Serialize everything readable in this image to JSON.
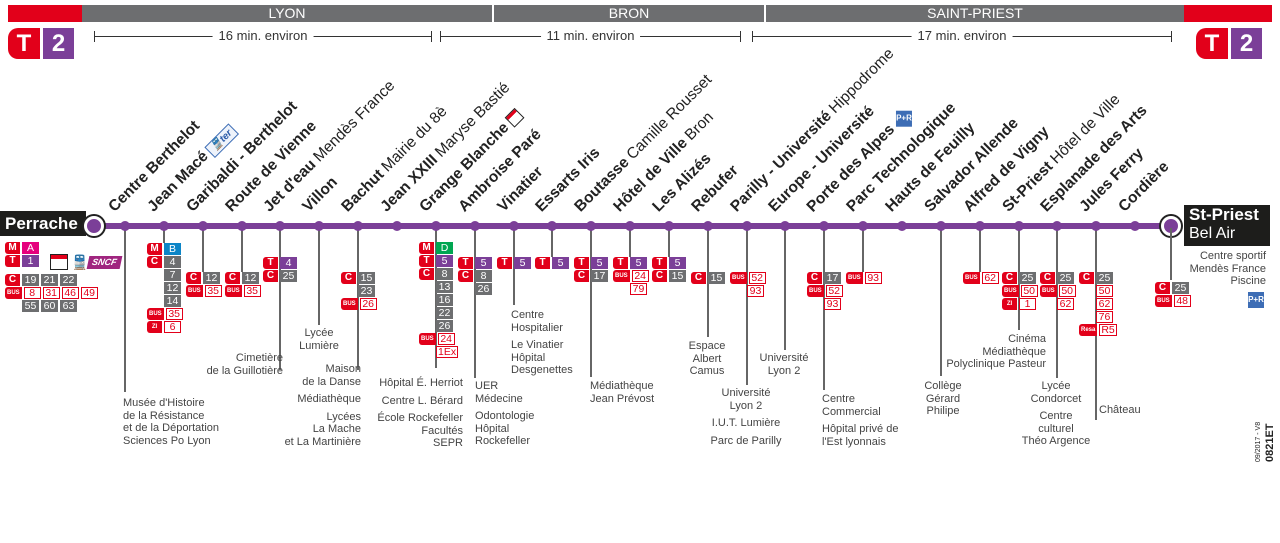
{
  "header": {
    "zones": [
      "LYON",
      "BRON",
      "SAINT-PRIEST"
    ],
    "durations": [
      "16 min. environ",
      "11 min. environ",
      "17 min. environ"
    ],
    "logo": {
      "mode": "T",
      "line": "2"
    }
  },
  "colors": {
    "line": "#7b3f98",
    "red": "#e2001a",
    "gray": "#6d6e70"
  },
  "origin": {
    "name": "Perrache",
    "rows": [
      {
        "mode": "M",
        "lines": [
          "A"
        ]
      },
      {
        "mode": "T",
        "lines": [
          "1"
        ]
      },
      {
        "mode": "C",
        "lines": [
          "19",
          "21",
          "22"
        ]
      },
      {
        "mode": "BUS",
        "lines": [
          "8",
          "31",
          "46",
          "49"
        ]
      },
      {
        "mode": null,
        "lines": [
          "55",
          "60",
          "63"
        ]
      }
    ],
    "icons": [
      "agence-tcl-icon",
      "train-icon",
      "sncf-logo"
    ],
    "sncf": "SNCF"
  },
  "terminus": {
    "name": "St-Priest",
    "sub": "Bel Air",
    "rows": [
      {
        "mode": "C",
        "lines": [
          "25"
        ]
      },
      {
        "mode": "BUS",
        "lines": [
          "48"
        ]
      }
    ],
    "poi": [
      "Centre sportif",
      "Mendès France",
      "Piscine"
    ],
    "pr": "P+R"
  },
  "stations": [
    {
      "name": "Centre Berthelot",
      "sub": "",
      "rows": [],
      "poi": [
        [
          "Musée d'Histoire",
          "de la Résistance",
          "et de la Déportation",
          "Sciences Po Lyon"
        ]
      ]
    },
    {
      "name": "Jean Macé",
      "sub": "",
      "icon": "ter",
      "rows": [
        {
          "mode": "M",
          "lines": [
            "B"
          ]
        },
        {
          "mode": "C",
          "lines": [
            "4"
          ]
        },
        {
          "mode": null,
          "lines": [
            "7"
          ]
        },
        {
          "mode": null,
          "lines": [
            "12"
          ]
        },
        {
          "mode": null,
          "lines": [
            "14"
          ]
        },
        {
          "mode": "BUS",
          "lines": [
            "35"
          ]
        },
        {
          "mode": "ZI",
          "lines": [
            "6"
          ]
        }
      ],
      "poi": []
    },
    {
      "name": "Garibaldi - Berthelot",
      "sub": "",
      "rows": [
        {
          "mode": "C",
          "lines": [
            "12"
          ]
        },
        {
          "mode": "BUS",
          "lines": [
            "35"
          ]
        }
      ],
      "poi": []
    },
    {
      "name": "Route de Vienne",
      "sub": "",
      "rows": [
        {
          "mode": "C",
          "lines": [
            "12"
          ]
        },
        {
          "mode": "BUS",
          "lines": [
            "35"
          ]
        }
      ],
      "poi": []
    },
    {
      "name": "Jet d'eau",
      "sub": "Mendès France",
      "rows": [
        {
          "mode": "T",
          "lines": [
            "4"
          ]
        },
        {
          "mode": "C",
          "lines": [
            "25"
          ]
        }
      ],
      "poi": [
        [
          "Cimetière",
          "de la Guillotière"
        ]
      ]
    },
    {
      "name": "Villon",
      "sub": "",
      "rows": [],
      "poi": [
        [
          "Lycée",
          "Lumière"
        ]
      ]
    },
    {
      "name": "Bachut",
      "sub": "Mairie du 8è",
      "rows": [
        {
          "mode": "C",
          "lines": [
            "15"
          ]
        },
        {
          "mode": null,
          "lines": [
            "23"
          ]
        },
        {
          "mode": "BUS",
          "lines": [
            "26"
          ]
        }
      ],
      "poi": [
        [
          "Maison",
          "de la Danse"
        ],
        [
          "Médiathèque"
        ],
        [
          "Lycées",
          "La Mache",
          "et La Martinière"
        ]
      ]
    },
    {
      "name": "Jean XXIII",
      "sub": "Maryse Bastié",
      "rows": [],
      "poi": []
    },
    {
      "name": "Grange Blanche",
      "sub": "",
      "icon": "agence",
      "rows": [
        {
          "mode": "M",
          "lines": [
            "D"
          ]
        },
        {
          "mode": "T",
          "lines": [
            "5"
          ]
        },
        {
          "mode": "C",
          "lines": [
            "8"
          ]
        },
        {
          "mode": null,
          "lines": [
            "13"
          ]
        },
        {
          "mode": null,
          "lines": [
            "16"
          ]
        },
        {
          "mode": null,
          "lines": [
            "22"
          ]
        },
        {
          "mode": null,
          "lines": [
            "26"
          ]
        },
        {
          "mode": "BUS",
          "lines": [
            "24"
          ]
        },
        {
          "mode": null,
          "kind": "BUS",
          "lines": [
            "1Ex"
          ]
        }
      ],
      "poi": [
        [
          "Hôpital É. Herriot"
        ],
        [
          "Centre L. Bérard"
        ],
        [
          "École Rockefeller",
          "Facultés",
          "SEPR"
        ]
      ]
    },
    {
      "name": "Ambroise Paré",
      "sub": "",
      "rows": [
        {
          "mode": "T",
          "lines": [
            "5"
          ]
        },
        {
          "mode": "C",
          "lines": [
            "8"
          ]
        },
        {
          "mode": null,
          "lines": [
            "26"
          ]
        }
      ],
      "poi": [
        [
          "UER",
          "Médecine"
        ],
        [
          "Odontologie",
          "Hôpital",
          "Rockefeller"
        ]
      ]
    },
    {
      "name": "Vinatier",
      "sub": "",
      "rows": [
        {
          "mode": "T",
          "lines": [
            "5"
          ]
        }
      ],
      "poi": [
        [
          "Centre",
          "Hospitalier"
        ],
        [
          "Le Vinatier",
          "Hôpital",
          "Desgenettes"
        ]
      ]
    },
    {
      "name": "Essarts Iris",
      "sub": "",
      "rows": [
        {
          "mode": "T",
          "lines": [
            "5"
          ]
        }
      ],
      "poi": []
    },
    {
      "name": "Boutasse",
      "sub": "Camille Rousset",
      "rows": [
        {
          "mode": "T",
          "lines": [
            "5"
          ]
        },
        {
          "mode": "C",
          "lines": [
            "17"
          ]
        }
      ],
      "poi": [
        [
          "Médiathèque",
          "Jean Prévost"
        ]
      ]
    },
    {
      "name": "Hôtel de Ville",
      "sub": "Bron",
      "rows": [
        {
          "mode": "T",
          "lines": [
            "5"
          ]
        },
        {
          "mode": "BUS",
          "lines": [
            "24"
          ]
        },
        {
          "mode": null,
          "kind": "BUS",
          "lines": [
            "79"
          ]
        }
      ],
      "poi": []
    },
    {
      "name": "Les Alizés",
      "sub": "",
      "rows": [
        {
          "mode": "T",
          "lines": [
            "5"
          ]
        },
        {
          "mode": "C",
          "lines": [
            "15"
          ]
        }
      ],
      "poi": []
    },
    {
      "name": "Rebufer",
      "sub": "",
      "rows": [
        {
          "mode": "C",
          "lines": [
            "15"
          ]
        }
      ],
      "poi": [
        [
          "Espace",
          "Albert",
          "Camus"
        ]
      ]
    },
    {
      "name": "Parilly - Université",
      "sub": "Hippodrome",
      "rows": [
        {
          "mode": "BUS",
          "lines": [
            "52"
          ]
        },
        {
          "mode": null,
          "kind": "BUS",
          "lines": [
            "93"
          ]
        }
      ],
      "poi": [
        [
          "Université",
          "Lyon 2"
        ],
        [
          "I.U.T. Lumière"
        ],
        [
          "Parc de Parilly"
        ]
      ]
    },
    {
      "name": "Europe - Université",
      "sub": "",
      "rows": [],
      "poi": [
        [
          "Université",
          "Lyon 2"
        ]
      ]
    },
    {
      "name": "Porte des Alpes",
      "sub": "",
      "icon": "pr",
      "rows": [
        {
          "mode": "C",
          "lines": [
            "17"
          ]
        },
        {
          "mode": "BUS",
          "lines": [
            "52"
          ]
        },
        {
          "mode": null,
          "kind": "BUS",
          "lines": [
            "93"
          ]
        }
      ],
      "poi": [
        [
          "Centre",
          "Commercial"
        ],
        [
          "Hôpital privé de",
          "l'Est lyonnais"
        ]
      ]
    },
    {
      "name": "Parc Technologique",
      "sub": "",
      "rows": [
        {
          "mode": "BUS",
          "lines": [
            "93"
          ]
        }
      ],
      "poi": []
    },
    {
      "name": "Hauts de Feuilly",
      "sub": "",
      "rows": [],
      "poi": []
    },
    {
      "name": "Salvador Allende",
      "sub": "",
      "rows": [],
      "poi": [
        [
          "Collège",
          "Gérard",
          "Philipe"
        ]
      ]
    },
    {
      "name": "Alfred de Vigny",
      "sub": "",
      "rows": [
        {
          "mode": "BUS",
          "lines": [
            "62"
          ]
        }
      ],
      "poi": []
    },
    {
      "name": "St-Priest",
      "sub": "Hôtel de Ville",
      "rows": [
        {
          "mode": "C",
          "lines": [
            "25"
          ]
        },
        {
          "mode": "BUS",
          "lines": [
            "50"
          ]
        },
        {
          "mode": "ZI",
          "lines": [
            "1"
          ]
        }
      ],
      "poi": [
        [
          "Cinéma",
          "Médiathèque",
          "Polyclinique Pasteur"
        ]
      ]
    },
    {
      "name": "Esplanade des Arts",
      "sub": "",
      "rows": [
        {
          "mode": "C",
          "lines": [
            "25"
          ]
        },
        {
          "mode": "BUS",
          "lines": [
            "50"
          ]
        },
        {
          "mode": null,
          "kind": "BUS",
          "lines": [
            "62"
          ]
        }
      ],
      "poi": [
        [
          "Lycée",
          "Condorcet"
        ],
        [
          "Centre",
          "culturel",
          "Théo Argence"
        ]
      ]
    },
    {
      "name": "Jules Ferry",
      "sub": "",
      "rows": [
        {
          "mode": "C",
          "lines": [
            "25"
          ]
        },
        {
          "mode": null,
          "kind": "BUS",
          "lines": [
            "50"
          ]
        },
        {
          "mode": null,
          "kind": "BUS",
          "lines": [
            "62"
          ]
        },
        {
          "mode": null,
          "kind": "BUS",
          "lines": [
            "76"
          ]
        },
        {
          "mode": "Resa",
          "lines": [
            "R5"
          ]
        }
      ],
      "poi": [
        [
          "Château"
        ]
      ]
    },
    {
      "name": "Cordière",
      "sub": "",
      "rows": [],
      "poi": []
    }
  ],
  "footer": {
    "date": "09/2017 - V8",
    "code": "0821ET"
  }
}
